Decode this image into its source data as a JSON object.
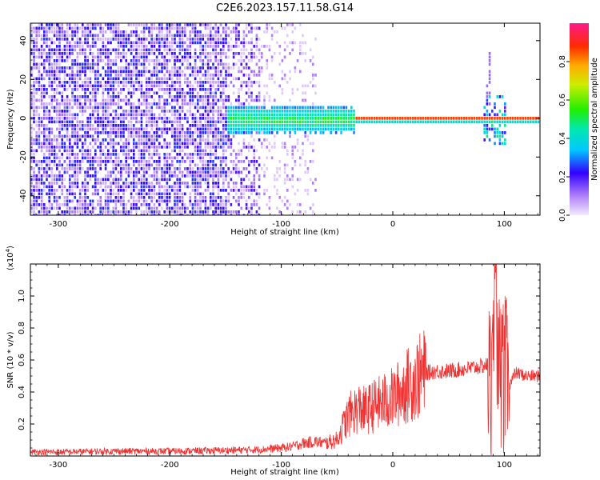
{
  "title": "C2E6.2023.157.11.58.G14",
  "colors": {
    "snr_line": "#ee3333",
    "frame": "#000000"
  },
  "chart_data": [
    {
      "type": "heatmap",
      "xlabel": "Height of straight line (km)",
      "ylabel": "Frequency (Hz)",
      "xlim": [
        -325,
        132
      ],
      "ylim": [
        -50,
        49
      ],
      "xticks": [
        -300,
        -200,
        -100,
        0,
        100
      ],
      "xtick_labels": [
        "-300",
        "-200",
        "-100",
        "0",
        "100"
      ],
      "yticks": [
        -40,
        -20,
        0,
        20,
        40
      ],
      "ytick_labels": [
        "-40",
        "-20",
        "0",
        "20",
        "40"
      ],
      "colorbar": {
        "label": "Normalized spectral amplitude",
        "range": [
          0,
          1
        ],
        "ticks": [
          0.0,
          0.2,
          0.4,
          0.6,
          0.8
        ],
        "tick_labels": [
          "0.0",
          "0.2",
          "0.4",
          "0.6",
          "0.8"
        ],
        "colormap": "rainbow (purple to red to pink)"
      },
      "features": [
        {
          "description_x_range": [
            -325,
            -150
          ],
          "frequency_range": [
            -50,
            49
          ],
          "amplitude": 0.15
        },
        {
          "description_x_range": [
            -150,
            -40
          ],
          "frequency_range": [
            -8,
            6
          ],
          "amplitude": 0.4
        },
        {
          "description_x_range": [
            -40,
            132
          ],
          "frequency_range": [
            -1,
            1
          ],
          "amplitude": 0.85
        },
        {
          "description_x_range": [
            82,
            102
          ],
          "frequency_range": [
            -15,
            35
          ],
          "amplitude": 0.5
        }
      ]
    },
    {
      "type": "line",
      "xlabel": "Height of straight line (km)",
      "ylabel": "SNR (10 * v/v)",
      "yscale_label": "(x10",
      "yscale_exp": "4",
      "xlim": [
        -325,
        132
      ],
      "ylim": [
        0,
        1.2
      ],
      "xticks": [
        -300,
        -200,
        -100,
        0,
        100
      ],
      "xtick_labels": [
        "-300",
        "-200",
        "-100",
        "0",
        "100"
      ],
      "yticks": [
        0.2,
        0.4,
        0.6,
        0.8,
        1.0
      ],
      "ytick_labels": [
        "0.2",
        "0.4",
        "0.6",
        "0.8",
        "1.0"
      ],
      "series": [
        {
          "color": "#ee3333",
          "x": [
            -325,
            -300,
            -250,
            -200,
            -150,
            -120,
            -100,
            -90,
            -80,
            -70,
            -60,
            -50,
            -45,
            -40,
            -35,
            -30,
            -25,
            -20,
            -15,
            -10,
            -5,
            0,
            10,
            20,
            30,
            40,
            50,
            60,
            70,
            80,
            85,
            88,
            90,
            92,
            95,
            98,
            100,
            103,
            105,
            110,
            120,
            132
          ],
          "y": [
            0.025,
            0.025,
            0.03,
            0.03,
            0.035,
            0.04,
            0.05,
            0.06,
            0.08,
            0.09,
            0.08,
            0.1,
            0.18,
            0.25,
            0.28,
            0.3,
            0.28,
            0.3,
            0.32,
            0.33,
            0.35,
            0.36,
            0.42,
            0.48,
            0.52,
            0.53,
            0.53,
            0.54,
            0.55,
            0.56,
            0.57,
            0.7,
            0.9,
            1.15,
            0.3,
            0.9,
            0.1,
            0.7,
            0.45,
            0.52,
            0.5,
            0.5
          ]
        }
      ]
    }
  ]
}
